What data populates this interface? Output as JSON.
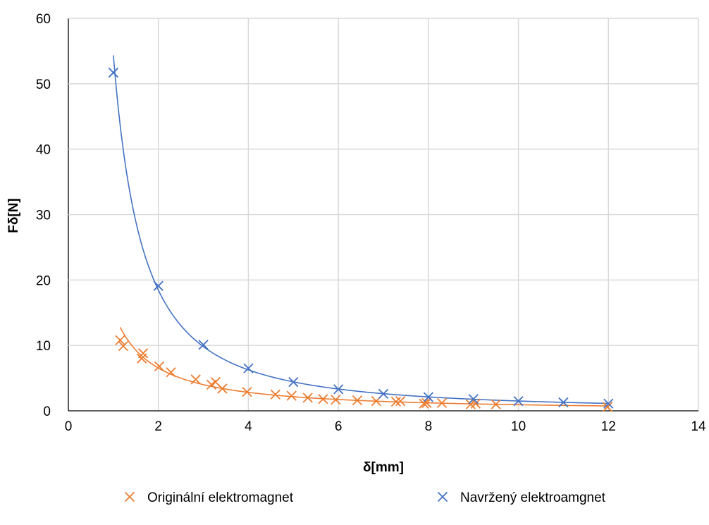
{
  "chart_data": {
    "type": "scatter",
    "xlabel": "δ[mm]",
    "ylabel": "Fδ[N]",
    "xlim": [
      0,
      14
    ],
    "ylim": [
      0,
      60
    ],
    "xticks": [
      0,
      2,
      4,
      6,
      8,
      10,
      12,
      14
    ],
    "yticks": [
      0,
      10,
      20,
      30,
      40,
      50,
      60
    ],
    "grid": true,
    "legend_position": "bottom",
    "series": [
      {
        "name": "Originální elektromagnet",
        "color": "#ED7D31",
        "marker": "x",
        "trendline": "power",
        "trend_x_range": [
          1.15,
          12
        ],
        "x": [
          1.15,
          1.22,
          1.63,
          1.66,
          2.02,
          2.28,
          2.83,
          3.18,
          3.27,
          3.42,
          3.97,
          4.6,
          4.96,
          5.32,
          5.66,
          5.94,
          6.42,
          6.84,
          7.28,
          7.38,
          7.9,
          7.96,
          8.3,
          8.94,
          9.05,
          9.5,
          11.98
        ],
        "y": [
          10.8,
          9.9,
          8.0,
          8.8,
          6.8,
          5.9,
          4.8,
          4.0,
          4.4,
          3.4,
          2.9,
          2.5,
          2.3,
          2.0,
          1.8,
          1.7,
          1.6,
          1.5,
          1.4,
          1.5,
          1.1,
          1.2,
          1.2,
          1.0,
          1.1,
          1.0,
          0.6
        ]
      },
      {
        "name": "Navržený elektroamgnet",
        "color": "#4472C4",
        "marker": "x",
        "trendline": "power",
        "trend_x_range": [
          1,
          12
        ],
        "x": [
          1,
          2,
          3,
          4,
          5,
          6,
          7,
          8,
          9,
          10,
          11,
          12
        ],
        "y": [
          51.7,
          19.1,
          10.1,
          6.5,
          4.4,
          3.3,
          2.6,
          2.1,
          1.8,
          1.5,
          1.3,
          1.1
        ]
      }
    ]
  }
}
